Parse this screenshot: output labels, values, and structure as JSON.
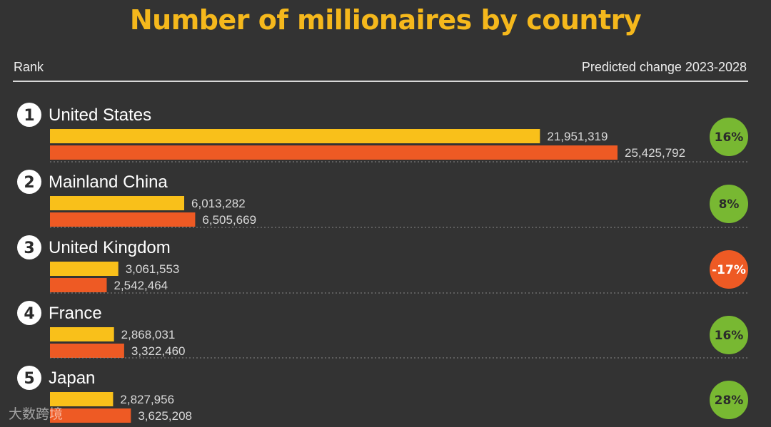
{
  "title": "Number of millionaires by country",
  "header": {
    "left_label": "Rank",
    "right_label": "Predicted change 2023-2028"
  },
  "watermark": "大数跨境",
  "colors": {
    "background": "#333333",
    "title": "#f5b81c",
    "bar_2023": "#f9c01a",
    "bar_2028": "#ee5a24",
    "positive_badge": "#78b832",
    "negative_badge": "#ee5a24"
  },
  "chart_data": {
    "type": "bar",
    "orientation": "horizontal",
    "title": "Number of millionaires by country",
    "categories": [
      "United States",
      "Mainland China",
      "United Kingdom",
      "France",
      "Japan"
    ],
    "ranks": [
      "1",
      "2",
      "3",
      "4",
      "5"
    ],
    "series": [
      {
        "values": [
          21951319,
          6013282,
          3061553,
          2868031,
          2827956
        ],
        "labels": [
          "21,951,319",
          "6,013,282",
          "3,061,553",
          "2,868,031",
          "2,827,956"
        ]
      },
      {
        "values": [
          25425792,
          6505669,
          2542464,
          3322460,
          3625208
        ],
        "labels": [
          "25,425,792",
          "6,505,669",
          "2,542,464",
          "3,322,460",
          "3,625,208"
        ]
      }
    ],
    "predicted_change": [
      "16%",
      "8%",
      "-17%",
      "16%",
      "28%"
    ],
    "predicted_change_values": [
      16,
      8,
      -17,
      16,
      28
    ],
    "grid": false,
    "legend": "none"
  }
}
